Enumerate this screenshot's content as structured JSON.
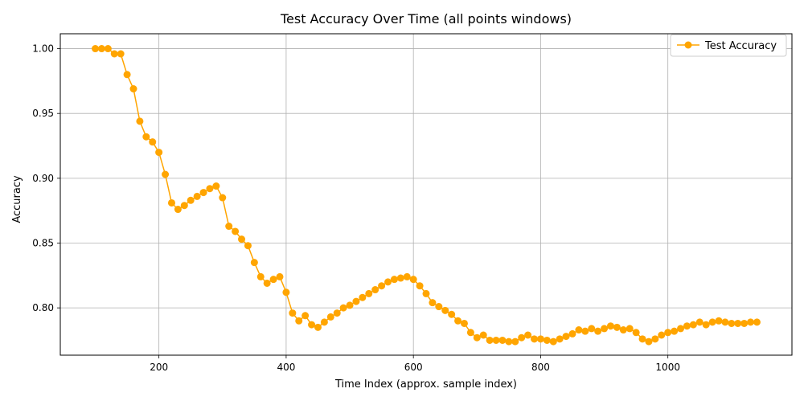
{
  "chart_data": {
    "type": "line",
    "title": "Test Accuracy Over Time (all points windows)",
    "xlabel": "Time Index (approx. sample index)",
    "ylabel": "Accuracy",
    "xlim": [
      45,
      1195
    ],
    "ylim": [
      0.7635,
      1.0115
    ],
    "xticks": [
      200,
      400,
      600,
      800,
      1000
    ],
    "xtick_labels": [
      "200",
      "400",
      "600",
      "800",
      "1000"
    ],
    "yticks": [
      0.8,
      0.85,
      0.9,
      0.95,
      1.0
    ],
    "ytick_labels": [
      "0.80",
      "0.85",
      "0.90",
      "0.95",
      "1.00"
    ],
    "grid": true,
    "legend_position": "top-right",
    "colors": {
      "series": "#FFA500",
      "grid": "#B0B0B0",
      "axes": "#000000"
    },
    "series": [
      {
        "name": "Test Accuracy",
        "marker": "circle",
        "x": [
          100,
          110,
          120,
          130,
          140,
          150,
          160,
          170,
          180,
          190,
          200,
          210,
          220,
          230,
          240,
          250,
          260,
          270,
          280,
          290,
          300,
          310,
          320,
          330,
          340,
          350,
          360,
          370,
          380,
          390,
          400,
          410,
          420,
          430,
          440,
          450,
          460,
          470,
          480,
          490,
          500,
          510,
          520,
          530,
          540,
          550,
          560,
          570,
          580,
          590,
          600,
          610,
          620,
          630,
          640,
          650,
          660,
          670,
          680,
          690,
          700,
          710,
          720,
          730,
          740,
          750,
          760,
          770,
          780,
          790,
          800,
          810,
          820,
          830,
          840,
          850,
          860,
          870,
          880,
          890,
          900,
          910,
          920,
          930,
          940,
          950,
          960,
          970,
          980,
          990,
          1000,
          1010,
          1020,
          1030,
          1040,
          1050,
          1060,
          1070,
          1080,
          1090,
          1100,
          1110,
          1120,
          1130,
          1140
        ],
        "y": [
          1.0,
          1.0,
          1.0,
          0.996,
          0.996,
          0.98,
          0.969,
          0.944,
          0.932,
          0.928,
          0.92,
          0.903,
          0.881,
          0.876,
          0.879,
          0.883,
          0.886,
          0.889,
          0.892,
          0.894,
          0.885,
          0.863,
          0.859,
          0.853,
          0.848,
          0.835,
          0.824,
          0.819,
          0.822,
          0.824,
          0.812,
          0.796,
          0.79,
          0.794,
          0.787,
          0.785,
          0.789,
          0.793,
          0.796,
          0.8,
          0.802,
          0.805,
          0.808,
          0.811,
          0.814,
          0.817,
          0.82,
          0.822,
          0.823,
          0.824,
          0.822,
          0.817,
          0.811,
          0.804,
          0.801,
          0.798,
          0.795,
          0.79,
          0.788,
          0.781,
          0.777,
          0.779,
          0.775,
          0.775,
          0.775,
          0.774,
          0.774,
          0.777,
          0.779,
          0.776,
          0.776,
          0.775,
          0.774,
          0.776,
          0.778,
          0.78,
          0.783,
          0.782,
          0.784,
          0.782,
          0.784,
          0.786,
          0.785,
          0.783,
          0.784,
          0.781,
          0.776,
          0.774,
          0.776,
          0.779,
          0.781,
          0.782,
          0.784,
          0.786,
          0.787,
          0.789,
          0.787,
          0.789,
          0.79,
          0.789,
          0.788,
          0.788,
          0.788,
          0.789,
          0.789
        ]
      }
    ]
  }
}
